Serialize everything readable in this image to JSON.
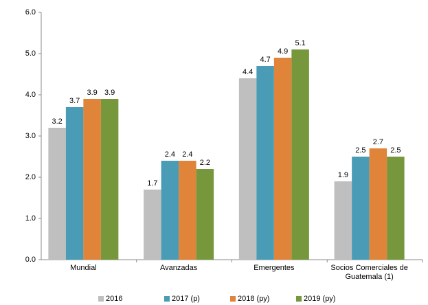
{
  "chart_data": {
    "type": "bar",
    "categories": [
      "Mundial",
      "Avanzadas",
      "Emergentes",
      "Socios Comerciales de Guatemala (1)"
    ],
    "series": [
      {
        "name": "2016",
        "color": "#bfbfbf",
        "values": [
          3.2,
          1.7,
          4.4,
          1.9
        ]
      },
      {
        "name": "2017 (p)",
        "color": "#4a9bb5",
        "values": [
          3.7,
          2.4,
          4.7,
          2.5
        ]
      },
      {
        "name": "2018 (py)",
        "color": "#e0843a",
        "values": [
          3.9,
          2.4,
          4.9,
          2.7
        ]
      },
      {
        "name": "2019 (py)",
        "color": "#77973d",
        "values": [
          3.9,
          2.2,
          5.1,
          2.5
        ]
      }
    ],
    "ylim": [
      0,
      6
    ],
    "yticks": [
      {
        "value": 0,
        "label": "0.0"
      },
      {
        "value": 1,
        "label": "1.0"
      },
      {
        "value": 2,
        "label": "2.0"
      },
      {
        "value": 3,
        "label": "3.0"
      },
      {
        "value": 4,
        "label": "4.0"
      },
      {
        "value": 5,
        "label": "5.0"
      },
      {
        "value": 6,
        "label": "6.0"
      }
    ],
    "grid": false,
    "legend": "bottom"
  }
}
